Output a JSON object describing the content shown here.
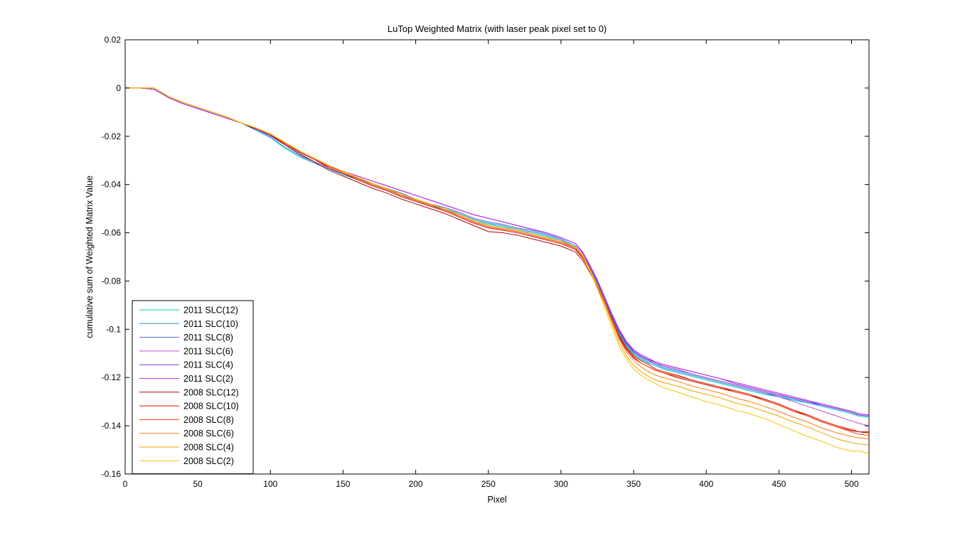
{
  "chart_data": {
    "type": "line",
    "title": "LuTop Weighted Matrix  (with laser peak pixel set to 0)",
    "xlabel": "Pixel",
    "ylabel": "cumulative sum of Weighted Matrix Value",
    "xlim": [
      0,
      512
    ],
    "ylim": [
      -0.16,
      0.02
    ],
    "xticks": [
      0,
      50,
      100,
      150,
      200,
      250,
      300,
      350,
      400,
      450,
      500
    ],
    "yticks": [
      0.02,
      0,
      -0.02,
      -0.04,
      -0.06,
      -0.08,
      -0.1,
      -0.12,
      -0.14,
      -0.16
    ],
    "xtick_labels": [
      "0",
      "50",
      "100",
      "150",
      "200",
      "250",
      "300",
      "350",
      "400",
      "450",
      "500"
    ],
    "ytick_labels": [
      "0.02",
      "0",
      "-0.02",
      "-0.04",
      "-0.06",
      "-0.08",
      "-0.1",
      "-0.12",
      "-0.14",
      "-0.16"
    ],
    "grid": false,
    "legend_position": "bottom-left",
    "x": [
      0,
      10,
      20,
      30,
      40,
      50,
      60,
      70,
      80,
      90,
      100,
      110,
      120,
      130,
      140,
      150,
      160,
      170,
      180,
      190,
      200,
      210,
      220,
      230,
      240,
      250,
      260,
      270,
      280,
      290,
      300,
      310,
      315,
      320,
      325,
      330,
      335,
      340,
      345,
      350,
      355,
      360,
      365,
      370,
      380,
      390,
      400,
      410,
      420,
      430,
      440,
      450,
      460,
      470,
      480,
      490,
      500,
      505,
      512
    ],
    "series": [
      {
        "name": "2011 SLC(12)",
        "color": "#00c8c8",
        "values": [
          0,
          0,
          -0.0005,
          -0.004,
          -0.0065,
          -0.0085,
          -0.0105,
          -0.0125,
          -0.0145,
          -0.0175,
          -0.0205,
          -0.025,
          -0.0285,
          -0.031,
          -0.0335,
          -0.036,
          -0.038,
          -0.0405,
          -0.0425,
          -0.045,
          -0.047,
          -0.049,
          -0.0505,
          -0.0525,
          -0.055,
          -0.0565,
          -0.0575,
          -0.059,
          -0.06,
          -0.0615,
          -0.0635,
          -0.0665,
          -0.0705,
          -0.0755,
          -0.0815,
          -0.0885,
          -0.0955,
          -0.102,
          -0.107,
          -0.1105,
          -0.1125,
          -0.114,
          -0.115,
          -0.1165,
          -0.118,
          -0.1195,
          -0.121,
          -0.1225,
          -0.124,
          -0.1255,
          -0.127,
          -0.128,
          -0.1295,
          -0.1305,
          -0.132,
          -0.1335,
          -0.135,
          -0.136,
          -0.1365
        ]
      },
      {
        "name": "2011 SLC(10)",
        "color": "#2a8fe0",
        "values": [
          0,
          0,
          -0.0005,
          -0.004,
          -0.0065,
          -0.0085,
          -0.0105,
          -0.0125,
          -0.0145,
          -0.0175,
          -0.0205,
          -0.0245,
          -0.028,
          -0.031,
          -0.0335,
          -0.0355,
          -0.0375,
          -0.04,
          -0.042,
          -0.044,
          -0.0465,
          -0.0485,
          -0.05,
          -0.052,
          -0.0545,
          -0.056,
          -0.057,
          -0.0585,
          -0.0595,
          -0.061,
          -0.063,
          -0.066,
          -0.07,
          -0.075,
          -0.081,
          -0.088,
          -0.095,
          -0.1015,
          -0.1065,
          -0.11,
          -0.112,
          -0.1135,
          -0.1145,
          -0.116,
          -0.1175,
          -0.119,
          -0.1205,
          -0.122,
          -0.1235,
          -0.125,
          -0.1265,
          -0.128,
          -0.129,
          -0.1305,
          -0.1315,
          -0.133,
          -0.1345,
          -0.1355,
          -0.136
        ]
      },
      {
        "name": "2011 SLC(8)",
        "color": "#4a6fdc",
        "values": [
          0,
          0,
          -0.0005,
          -0.004,
          -0.0065,
          -0.0085,
          -0.0105,
          -0.0125,
          -0.0145,
          -0.017,
          -0.02,
          -0.0235,
          -0.027,
          -0.0305,
          -0.033,
          -0.0355,
          -0.0375,
          -0.0395,
          -0.0415,
          -0.0435,
          -0.046,
          -0.048,
          -0.0495,
          -0.0515,
          -0.054,
          -0.0555,
          -0.0565,
          -0.058,
          -0.059,
          -0.0605,
          -0.0625,
          -0.0655,
          -0.0695,
          -0.0745,
          -0.0805,
          -0.0875,
          -0.0945,
          -0.101,
          -0.106,
          -0.1095,
          -0.1115,
          -0.113,
          -0.114,
          -0.1155,
          -0.117,
          -0.1185,
          -0.12,
          -0.1215,
          -0.123,
          -0.1245,
          -0.126,
          -0.1275,
          -0.1285,
          -0.13,
          -0.131,
          -0.1325,
          -0.134,
          -0.135,
          -0.1355
        ]
      },
      {
        "name": "2011 SLC(6)",
        "color": "#c050c8",
        "values": [
          0,
          0,
          -0.0005,
          -0.004,
          -0.0065,
          -0.0085,
          -0.0105,
          -0.0125,
          -0.0145,
          -0.017,
          -0.0195,
          -0.023,
          -0.0265,
          -0.0295,
          -0.0325,
          -0.0345,
          -0.0365,
          -0.0385,
          -0.0405,
          -0.0425,
          -0.0445,
          -0.0465,
          -0.0485,
          -0.0505,
          -0.0525,
          -0.054,
          -0.0555,
          -0.057,
          -0.0585,
          -0.06,
          -0.062,
          -0.0645,
          -0.0685,
          -0.074,
          -0.08,
          -0.087,
          -0.094,
          -0.1005,
          -0.1055,
          -0.109,
          -0.111,
          -0.1125,
          -0.114,
          -0.115,
          -0.1165,
          -0.1185,
          -0.12,
          -0.1215,
          -0.123,
          -0.1245,
          -0.126,
          -0.128,
          -0.13,
          -0.132,
          -0.134,
          -0.136,
          -0.138,
          -0.139,
          -0.14
        ]
      },
      {
        "name": "2011 SLC(4)",
        "color": "#9030d8",
        "values": [
          0,
          0,
          -0.0005,
          -0.004,
          -0.0065,
          -0.0085,
          -0.0105,
          -0.0125,
          -0.0145,
          -0.017,
          -0.0195,
          -0.023,
          -0.0265,
          -0.0295,
          -0.0325,
          -0.0345,
          -0.0365,
          -0.0385,
          -0.0405,
          -0.0425,
          -0.0445,
          -0.0465,
          -0.0485,
          -0.0505,
          -0.0525,
          -0.054,
          -0.0555,
          -0.057,
          -0.0585,
          -0.06,
          -0.062,
          -0.0645,
          -0.0685,
          -0.074,
          -0.08,
          -0.087,
          -0.094,
          -0.1005,
          -0.1055,
          -0.109,
          -0.111,
          -0.1125,
          -0.1135,
          -0.1145,
          -0.116,
          -0.1175,
          -0.119,
          -0.1205,
          -0.1225,
          -0.124,
          -0.1255,
          -0.127,
          -0.1285,
          -0.13,
          -0.1315,
          -0.133,
          -0.1345,
          -0.1355,
          -0.136
        ]
      },
      {
        "name": "2011 SLC(2)",
        "color": "#b030e8",
        "values": [
          0,
          0,
          -0.0005,
          -0.004,
          -0.0065,
          -0.0085,
          -0.0105,
          -0.0125,
          -0.0145,
          -0.017,
          -0.0195,
          -0.023,
          -0.0265,
          -0.0295,
          -0.0325,
          -0.0345,
          -0.0365,
          -0.0385,
          -0.0405,
          -0.0425,
          -0.0445,
          -0.0465,
          -0.0485,
          -0.0505,
          -0.0525,
          -0.054,
          -0.0555,
          -0.057,
          -0.0585,
          -0.06,
          -0.062,
          -0.0645,
          -0.068,
          -0.0735,
          -0.0795,
          -0.0865,
          -0.0935,
          -0.1,
          -0.105,
          -0.1085,
          -0.1105,
          -0.112,
          -0.1135,
          -0.1145,
          -0.116,
          -0.1175,
          -0.119,
          -0.1205,
          -0.122,
          -0.1235,
          -0.125,
          -0.1265,
          -0.128,
          -0.1295,
          -0.131,
          -0.1325,
          -0.134,
          -0.135,
          -0.1355
        ]
      },
      {
        "name": "2008 SLC(12)",
        "color": "#b00000",
        "values": [
          0,
          0,
          0,
          -0.0035,
          -0.006,
          -0.008,
          -0.01,
          -0.012,
          -0.0145,
          -0.017,
          -0.0195,
          -0.0235,
          -0.0275,
          -0.0305,
          -0.034,
          -0.0365,
          -0.039,
          -0.0415,
          -0.0435,
          -0.046,
          -0.048,
          -0.05,
          -0.052,
          -0.0545,
          -0.057,
          -0.0595,
          -0.06,
          -0.061,
          -0.0625,
          -0.064,
          -0.0655,
          -0.068,
          -0.0715,
          -0.0765,
          -0.0825,
          -0.0895,
          -0.0965,
          -0.1035,
          -0.1085,
          -0.112,
          -0.114,
          -0.1155,
          -0.117,
          -0.118,
          -0.12,
          -0.1215,
          -0.123,
          -0.1245,
          -0.126,
          -0.1275,
          -0.129,
          -0.131,
          -0.1335,
          -0.136,
          -0.1385,
          -0.1405,
          -0.142,
          -0.1425,
          -0.143
        ]
      },
      {
        "name": "2008 SLC(10)",
        "color": "#e01000",
        "values": [
          0,
          0,
          0,
          -0.0035,
          -0.006,
          -0.008,
          -0.01,
          -0.012,
          -0.0145,
          -0.0165,
          -0.019,
          -0.023,
          -0.0265,
          -0.0295,
          -0.033,
          -0.0355,
          -0.038,
          -0.0405,
          -0.0425,
          -0.045,
          -0.047,
          -0.049,
          -0.051,
          -0.0535,
          -0.056,
          -0.058,
          -0.059,
          -0.06,
          -0.0615,
          -0.063,
          -0.0645,
          -0.067,
          -0.0705,
          -0.0755,
          -0.0815,
          -0.0885,
          -0.0955,
          -0.1025,
          -0.1075,
          -0.111,
          -0.113,
          -0.1145,
          -0.1165,
          -0.1175,
          -0.119,
          -0.121,
          -0.1225,
          -0.124,
          -0.1255,
          -0.127,
          -0.129,
          -0.131,
          -0.1335,
          -0.1355,
          -0.138,
          -0.14,
          -0.1415,
          -0.1425,
          -0.1425
        ]
      },
      {
        "name": "2008 SLC(8)",
        "color": "#ff4000",
        "values": [
          0,
          0,
          0,
          -0.0035,
          -0.006,
          -0.008,
          -0.01,
          -0.012,
          -0.0145,
          -0.0165,
          -0.019,
          -0.023,
          -0.026,
          -0.029,
          -0.0325,
          -0.035,
          -0.0375,
          -0.04,
          -0.042,
          -0.0445,
          -0.0465,
          -0.0485,
          -0.0505,
          -0.053,
          -0.0555,
          -0.0575,
          -0.0585,
          -0.0595,
          -0.061,
          -0.0625,
          -0.064,
          -0.0665,
          -0.07,
          -0.0755,
          -0.0815,
          -0.0885,
          -0.096,
          -0.103,
          -0.108,
          -0.1115,
          -0.114,
          -0.1155,
          -0.117,
          -0.118,
          -0.1195,
          -0.121,
          -0.1225,
          -0.124,
          -0.126,
          -0.1275,
          -0.1295,
          -0.1315,
          -0.134,
          -0.136,
          -0.1385,
          -0.1405,
          -0.1425,
          -0.1435,
          -0.144
        ]
      },
      {
        "name": "2008 SLC(6)",
        "color": "#ff7a10",
        "values": [
          0,
          0,
          0,
          -0.0035,
          -0.006,
          -0.008,
          -0.01,
          -0.012,
          -0.0145,
          -0.0165,
          -0.019,
          -0.0225,
          -0.026,
          -0.029,
          -0.032,
          -0.0345,
          -0.037,
          -0.0395,
          -0.0415,
          -0.044,
          -0.046,
          -0.048,
          -0.05,
          -0.0525,
          -0.055,
          -0.057,
          -0.058,
          -0.059,
          -0.0605,
          -0.062,
          -0.0635,
          -0.066,
          -0.0695,
          -0.075,
          -0.0815,
          -0.089,
          -0.0965,
          -0.104,
          -0.1095,
          -0.113,
          -0.1155,
          -0.1175,
          -0.119,
          -0.12,
          -0.1215,
          -0.1235,
          -0.125,
          -0.1265,
          -0.1285,
          -0.13,
          -0.132,
          -0.134,
          -0.1365,
          -0.1385,
          -0.141,
          -0.143,
          -0.1445,
          -0.145,
          -0.1455
        ]
      },
      {
        "name": "2008 SLC(4)",
        "color": "#f0a000",
        "values": [
          0,
          0,
          0,
          -0.0035,
          -0.006,
          -0.008,
          -0.01,
          -0.012,
          -0.0145,
          -0.0165,
          -0.019,
          -0.0225,
          -0.026,
          -0.029,
          -0.032,
          -0.0345,
          -0.037,
          -0.0395,
          -0.0415,
          -0.044,
          -0.046,
          -0.048,
          -0.05,
          -0.0525,
          -0.055,
          -0.057,
          -0.058,
          -0.059,
          -0.0605,
          -0.062,
          -0.0635,
          -0.066,
          -0.0695,
          -0.0755,
          -0.082,
          -0.0895,
          -0.0975,
          -0.1055,
          -0.111,
          -0.115,
          -0.1175,
          -0.1195,
          -0.121,
          -0.122,
          -0.1235,
          -0.1255,
          -0.127,
          -0.1285,
          -0.1305,
          -0.132,
          -0.134,
          -0.136,
          -0.1385,
          -0.1405,
          -0.143,
          -0.1455,
          -0.147,
          -0.1475,
          -0.148
        ]
      },
      {
        "name": "2008 SLC(2)",
        "color": "#f5c400",
        "values": [
          0,
          0,
          0,
          -0.0035,
          -0.006,
          -0.008,
          -0.01,
          -0.012,
          -0.0145,
          -0.0165,
          -0.019,
          -0.0225,
          -0.026,
          -0.029,
          -0.032,
          -0.0345,
          -0.037,
          -0.0395,
          -0.0415,
          -0.044,
          -0.046,
          -0.048,
          -0.05,
          -0.0525,
          -0.055,
          -0.057,
          -0.058,
          -0.059,
          -0.0605,
          -0.062,
          -0.0635,
          -0.066,
          -0.0695,
          -0.076,
          -0.083,
          -0.091,
          -0.099,
          -0.107,
          -0.1125,
          -0.1165,
          -0.119,
          -0.121,
          -0.1225,
          -0.124,
          -0.126,
          -0.128,
          -0.13,
          -0.1315,
          -0.1335,
          -0.135,
          -0.137,
          -0.1395,
          -0.142,
          -0.1445,
          -0.1465,
          -0.149,
          -0.1505,
          -0.1505,
          -0.1515
        ]
      }
    ]
  }
}
